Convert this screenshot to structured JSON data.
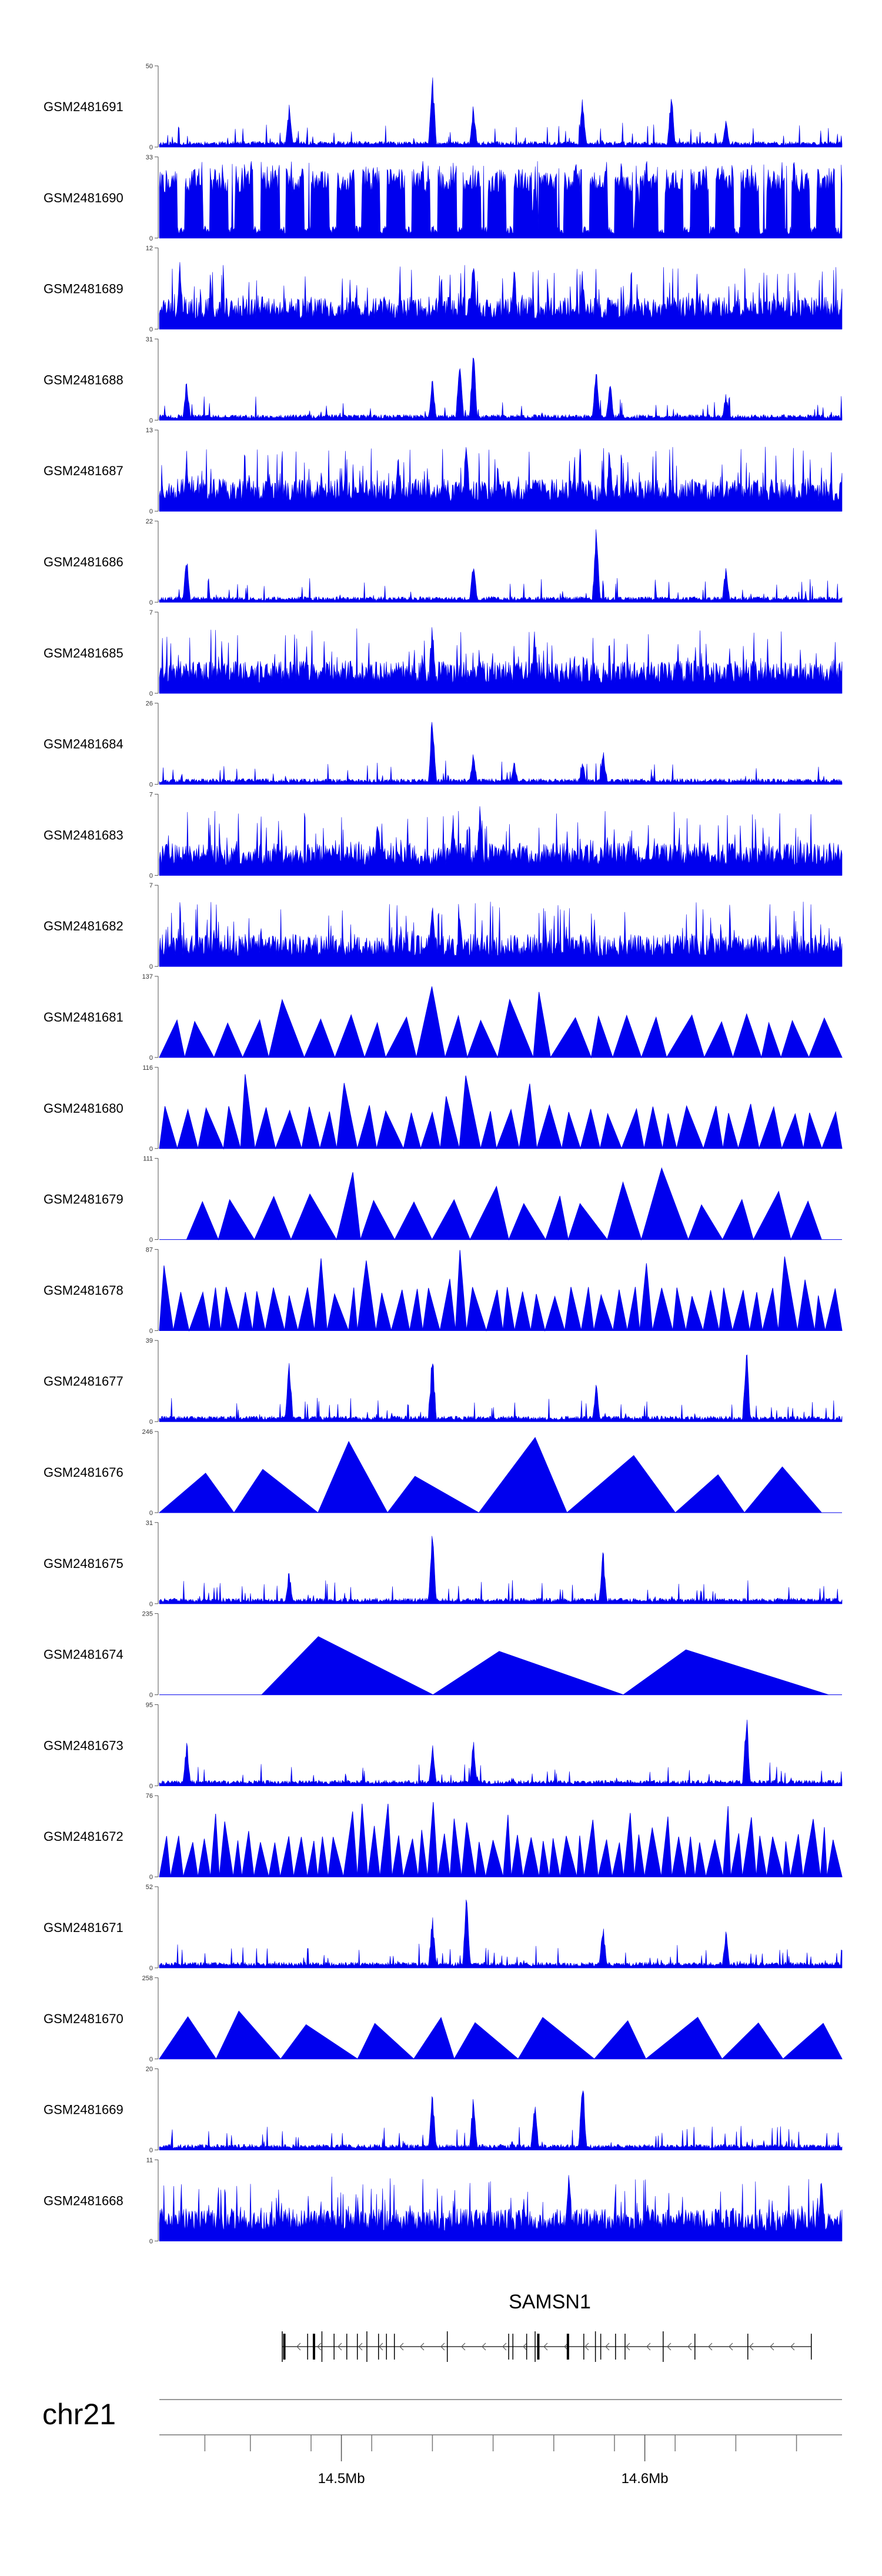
{
  "chart_data": {
    "type": "area",
    "color": "#0000ee",
    "tracks": [
      {
        "name": "GSM2481691",
        "max": 50,
        "pattern": "spiky",
        "seed": 11,
        "peaks": [
          [
            0.19,
            0.55
          ],
          [
            0.4,
            1.0
          ],
          [
            0.46,
            0.6
          ],
          [
            0.62,
            0.7
          ],
          [
            0.75,
            0.75
          ],
          [
            0.83,
            0.4
          ]
        ]
      },
      {
        "name": "GSM2481690",
        "max": 33,
        "pattern": "dense_gaps",
        "seed": 22,
        "peaks": [
          [
            0.35,
            0.9
          ],
          [
            0.55,
            0.9
          ],
          [
            0.7,
            0.85
          ]
        ]
      },
      {
        "name": "GSM2481689",
        "max": 12,
        "pattern": "dense",
        "seed": 33,
        "peaks": [
          [
            0.03,
            0.95
          ],
          [
            0.46,
            0.98
          ],
          [
            0.52,
            0.85
          ],
          [
            0.62,
            0.8
          ]
        ]
      },
      {
        "name": "GSM2481688",
        "max": 31,
        "pattern": "spiky",
        "seed": 44,
        "peaks": [
          [
            0.04,
            0.55
          ],
          [
            0.4,
            0.55
          ],
          [
            0.44,
            0.92
          ],
          [
            0.46,
            1.0
          ],
          [
            0.64,
            0.8
          ],
          [
            0.66,
            0.55
          ],
          [
            0.83,
            0.35
          ]
        ]
      },
      {
        "name": "GSM2481687",
        "max": 13,
        "pattern": "dense",
        "seed": 55,
        "peaks": [
          [
            0.04,
            0.8
          ],
          [
            0.35,
            0.75
          ],
          [
            0.45,
            0.98
          ],
          [
            0.66,
            0.8
          ]
        ]
      },
      {
        "name": "GSM2481686",
        "max": 22,
        "pattern": "spiky",
        "seed": 66,
        "peaks": [
          [
            0.04,
            0.6
          ],
          [
            0.46,
            0.6
          ],
          [
            0.64,
            1.0
          ],
          [
            0.83,
            0.5
          ]
        ]
      },
      {
        "name": "GSM2481685",
        "max": 7,
        "pattern": "dense",
        "seed": 77,
        "peaks": [
          [
            0.4,
            1.0
          ],
          [
            0.55,
            0.85
          ]
        ]
      },
      {
        "name": "GSM2481684",
        "max": 26,
        "pattern": "spiky",
        "seed": 88,
        "peaks": [
          [
            0.4,
            1.0
          ],
          [
            0.46,
            0.45
          ],
          [
            0.52,
            0.3
          ],
          [
            0.62,
            0.3
          ],
          [
            0.65,
            0.45
          ]
        ]
      },
      {
        "name": "GSM2481683",
        "max": 7,
        "pattern": "dense",
        "seed": 99,
        "peaks": [
          [
            0.47,
            1.0
          ],
          [
            0.43,
            0.85
          ],
          [
            0.32,
            0.8
          ]
        ]
      },
      {
        "name": "GSM2481682",
        "max": 7,
        "pattern": "dense",
        "seed": 111,
        "peaks": [
          [
            0.4,
            0.98
          ],
          [
            0.44,
            0.7
          ]
        ]
      },
      {
        "name": "GSM2481681",
        "max": 137,
        "pattern": "triangles",
        "seed": 122,
        "start": 0.0,
        "end": 1.0,
        "n": 24,
        "peaks": [
          [
            0.19,
            0.95
          ],
          [
            0.55,
            0.95
          ],
          [
            0.75,
            0.85
          ],
          [
            1.0,
            1.0
          ]
        ]
      },
      {
        "name": "GSM2481680",
        "max": 116,
        "pattern": "triangles",
        "seed": 133,
        "start": 0.0,
        "end": 1.0,
        "n": 34,
        "peaks": [
          [
            0.55,
            0.98
          ],
          [
            0.86,
            0.65
          ]
        ]
      },
      {
        "name": "GSM2481679",
        "max": 111,
        "pattern": "triangles",
        "seed": 144,
        "start": 0.04,
        "end": 0.97,
        "n": 18,
        "peaks": [
          [
            0.35,
            0.7
          ],
          [
            0.45,
            0.9
          ],
          [
            0.95,
            0.45
          ]
        ]
      },
      {
        "name": "GSM2481678",
        "max": 87,
        "pattern": "triangles",
        "seed": 155,
        "start": 0.0,
        "end": 1.0,
        "n": 44,
        "peaks": [
          [
            0.44,
            1.0
          ],
          [
            0.95,
            0.7
          ]
        ]
      },
      {
        "name": "GSM2481677",
        "max": 39,
        "pattern": "spiky",
        "seed": 166,
        "peaks": [
          [
            0.19,
            0.9
          ],
          [
            0.4,
            0.95
          ],
          [
            0.86,
            1.0
          ],
          [
            0.64,
            0.5
          ]
        ]
      },
      {
        "name": "GSM2481676",
        "max": 246,
        "pattern": "triangles",
        "seed": 177,
        "start": 0.0,
        "end": 0.97,
        "n": 8,
        "peaks": [
          [
            0.93,
            1.0
          ],
          [
            0.0,
            0.55
          ]
        ]
      },
      {
        "name": "GSM2481675",
        "max": 31,
        "pattern": "spiky",
        "seed": 188,
        "peaks": [
          [
            0.4,
            1.0
          ],
          [
            0.19,
            0.45
          ],
          [
            0.65,
            0.7
          ]
        ]
      },
      {
        "name": "GSM2481674",
        "max": 235,
        "pattern": "triangles",
        "seed": 199,
        "start": 0.15,
        "end": 0.98,
        "n": 3,
        "peaks": [
          [
            0.3,
            1.0
          ],
          [
            0.98,
            0.45
          ]
        ]
      },
      {
        "name": "GSM2481673",
        "max": 95,
        "pattern": "spiky",
        "seed": 211,
        "peaks": [
          [
            0.04,
            0.6
          ],
          [
            0.4,
            0.55
          ],
          [
            0.46,
            0.6
          ],
          [
            0.86,
            1.0
          ]
        ]
      },
      {
        "name": "GSM2481672",
        "max": 76,
        "pattern": "triangles",
        "seed": 222,
        "start": 0.0,
        "end": 1.0,
        "n": 56,
        "peaks": [
          [
            0.3,
            1.0
          ],
          [
            0.4,
            0.95
          ],
          [
            0.44,
            0.9
          ]
        ]
      },
      {
        "name": "GSM2481671",
        "max": 52,
        "pattern": "spiky",
        "seed": 233,
        "peaks": [
          [
            0.4,
            0.7
          ],
          [
            0.45,
            1.0
          ],
          [
            0.65,
            0.6
          ],
          [
            0.83,
            0.5
          ]
        ]
      },
      {
        "name": "GSM2481670",
        "max": 258,
        "pattern": "triangles",
        "seed": 244,
        "start": 0.0,
        "end": 1.0,
        "n": 11,
        "peaks": [
          [
            0.1,
            1.0
          ],
          [
            0.6,
            1.0
          ],
          [
            0.75,
            0.85
          ]
        ]
      },
      {
        "name": "GSM2481669",
        "max": 20,
        "pattern": "spiky",
        "seed": 255,
        "peaks": [
          [
            0.4,
            0.75
          ],
          [
            0.46,
            0.75
          ],
          [
            0.62,
            1.0
          ],
          [
            0.55,
            0.65
          ]
        ]
      },
      {
        "name": "GSM2481668",
        "max": 11,
        "pattern": "dense",
        "seed": 266,
        "peaks": [
          [
            0.6,
            0.98
          ],
          [
            0.97,
            0.95
          ]
        ]
      }
    ],
    "gene": {
      "name": "SAMSN1",
      "start_frac": 0.18,
      "end_frac": 0.955,
      "strand": "-"
    },
    "chromosome": "chr21",
    "axis": {
      "start_mb": 14.44,
      "end_mb": 14.665,
      "ticks_mb": [
        14.455,
        14.47,
        14.49,
        14.51,
        14.53,
        14.55,
        14.57,
        14.59,
        14.61,
        14.63,
        14.65
      ],
      "labels": [
        {
          "mb": 14.5,
          "text": "14.5Mb"
        },
        {
          "mb": 14.6,
          "text": "14.6Mb"
        }
      ]
    }
  }
}
